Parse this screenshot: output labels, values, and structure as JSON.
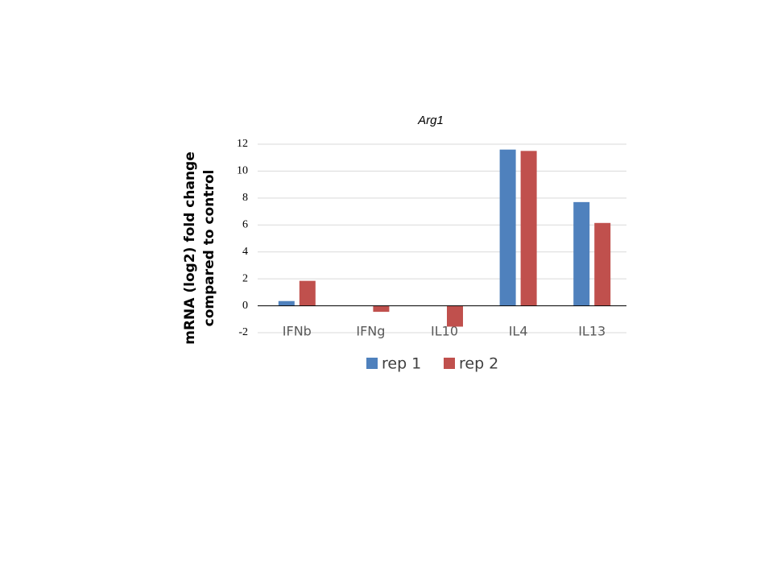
{
  "chart_data": {
    "type": "bar",
    "title": "Arg1",
    "y_label": [
      "mRNA (log2) fold change",
      "compared to control"
    ],
    "categories": [
      "IFNb",
      "IFNg",
      "IL10",
      "IL4",
      "IL13"
    ],
    "series": [
      {
        "name": "rep 1",
        "color": "#4f81bd",
        "values": [
          0.35,
          0,
          0,
          11.6,
          7.7
        ]
      },
      {
        "name": "rep 2",
        "color": "#c0504d",
        "values": [
          1.85,
          -0.45,
          -1.55,
          11.5,
          6.15
        ]
      }
    ],
    "ylim": [
      -2,
      12
    ],
    "yticks": [
      -2,
      0,
      2,
      4,
      6,
      8,
      10,
      12
    ],
    "grid": true,
    "legend": "bottom"
  }
}
